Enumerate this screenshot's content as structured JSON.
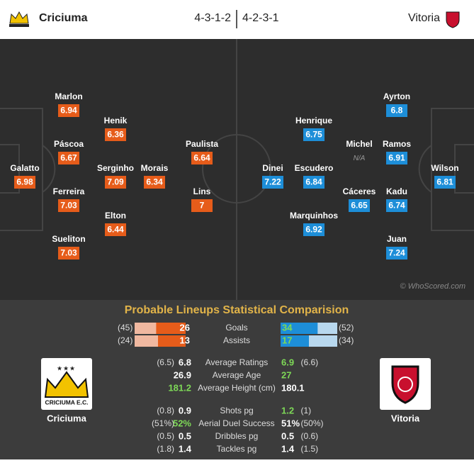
{
  "header": {
    "home": "Criciuma",
    "home_formation": "4-3-1-2",
    "away_formation": "4-2-3-1",
    "away": "Vitoria"
  },
  "pitch": {
    "home_players": [
      {
        "name": "Galatto",
        "rating": "6.98"
      },
      {
        "name": "Marlon",
        "rating": "6.94"
      },
      {
        "name": "Páscoa",
        "rating": "6.67"
      },
      {
        "name": "Ferreira",
        "rating": "7.03"
      },
      {
        "name": "Sueliton",
        "rating": "7.03"
      },
      {
        "name": "Henik",
        "rating": "6.36"
      },
      {
        "name": "Serginho",
        "rating": "7.09"
      },
      {
        "name": "Elton",
        "rating": "6.44"
      },
      {
        "name": "Morais",
        "rating": "6.34"
      },
      {
        "name": "Paulista",
        "rating": "6.64"
      },
      {
        "name": "Lins",
        "rating": "7"
      }
    ],
    "away_players": [
      {
        "name": "Wilson",
        "rating": "6.81"
      },
      {
        "name": "Ayrton",
        "rating": "6.8"
      },
      {
        "name": "Ramos",
        "rating": "6.91"
      },
      {
        "name": "Kadu",
        "rating": "6.74"
      },
      {
        "name": "Juan",
        "rating": "7.24"
      },
      {
        "name": "Michel",
        "rating": "N/A"
      },
      {
        "name": "Cáceres",
        "rating": "6.65"
      },
      {
        "name": "Henrique",
        "rating": "6.75"
      },
      {
        "name": "Escudero",
        "rating": "6.84"
      },
      {
        "name": "Marquinhos",
        "rating": "6.92"
      },
      {
        "name": "Dinei",
        "rating": "7.22"
      }
    ],
    "watermark": "© WhoScored.com"
  },
  "comparison": {
    "title": "Probable Lineups Statistical Comparision",
    "bars": [
      {
        "label": "Goals",
        "home": 26,
        "home_total": 45,
        "home_total_label": "(45)",
        "away": 34,
        "away_total": 52,
        "away_total_label": "(52)"
      },
      {
        "label": "Assists",
        "home": 13,
        "home_total": 24,
        "home_total_label": "(24)",
        "away": 17,
        "away_total": 34,
        "away_total_label": "(34)"
      }
    ],
    "stats": [
      [
        {
          "label": "Average Ratings",
          "home_prev": "(6.5)",
          "home": "6.8",
          "away": "6.9",
          "away_prev": "(6.6)",
          "better": "away"
        },
        {
          "label": "Average Age",
          "home_prev": "",
          "home": "26.9",
          "away": "27",
          "away_prev": "",
          "better": "away"
        },
        {
          "label": "Average Height (cm)",
          "home_prev": "",
          "home": "181.2",
          "away": "180.1",
          "away_prev": "",
          "better": "home"
        }
      ],
      [
        {
          "label": "Shots pg",
          "home_prev": "(0.8)",
          "home": "0.9",
          "away": "1.2",
          "away_prev": "(1)",
          "better": "away"
        },
        {
          "label": "Aerial Duel Success",
          "home_prev": "(51%)",
          "home": "52%",
          "away": "51%",
          "away_prev": "(50%)",
          "better": "home"
        },
        {
          "label": "Dribbles pg",
          "home_prev": "(0.5)",
          "home": "0.5",
          "away": "0.5",
          "away_prev": "(0.6)",
          "better": "tie"
        },
        {
          "label": "Tackles pg",
          "home_prev": "(1.8)",
          "home": "1.4",
          "away": "1.4",
          "away_prev": "(1.5)",
          "better": "tie"
        }
      ]
    ],
    "home_logo_text": "CRICIUMA E.C.",
    "home_name": "Criciuma",
    "away_name": "Vitoria"
  }
}
